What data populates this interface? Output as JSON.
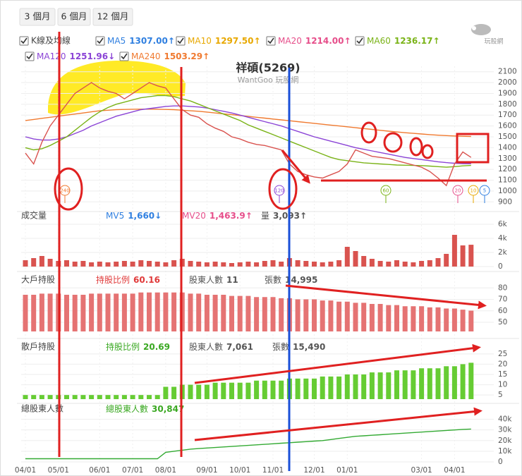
{
  "tabs": [
    "3 個月",
    "6 個月",
    "12 個月"
  ],
  "logo": "玩股網",
  "chart_data": [
    {
      "type": "line",
      "label": "K線及均線",
      "title": "祥碩(5269)",
      "subtitle": "WantGoo 玩股網",
      "legend": [
        {
          "name": "MA5",
          "value": "1307.00↑",
          "color": "#2f7fe0"
        },
        {
          "name": "MA10",
          "value": "1297.50↑",
          "color": "#e8a800"
        },
        {
          "name": "MA20",
          "value": "1214.00↑",
          "color": "#e64e8a"
        },
        {
          "name": "MA60",
          "value": "1236.17↑",
          "color": "#7ab317"
        },
        {
          "name": "MA120",
          "value": "1251.96↓",
          "color": "#8b44d6"
        },
        {
          "name": "MA240",
          "value": "1503.29↑",
          "color": "#f07a30"
        }
      ],
      "series": [
        {
          "color": "#f07a30",
          "values": [
            1650,
            1660,
            1670,
            1680,
            1690,
            1700,
            1710,
            1720,
            1730,
            1740,
            1745,
            1750,
            1752,
            1754,
            1755,
            1755,
            1754,
            1752,
            1750,
            1745,
            1740,
            1735,
            1728,
            1720,
            1712,
            1704,
            1696,
            1688,
            1680,
            1672,
            1664,
            1656,
            1648,
            1640,
            1632,
            1624,
            1616,
            1608,
            1600,
            1592,
            1584,
            1576,
            1568,
            1560,
            1552,
            1545,
            1538,
            1532,
            1526,
            1520,
            1515,
            1511,
            1508,
            1505,
            1503
          ]
        },
        {
          "color": "#8b44d6",
          "values": [
            1500,
            1480,
            1470,
            1470,
            1480,
            1500,
            1530,
            1560,
            1600,
            1630,
            1660,
            1690,
            1710,
            1730,
            1750,
            1760,
            1770,
            1780,
            1785,
            1785,
            1780,
            1775,
            1765,
            1750,
            1735,
            1720,
            1700,
            1680,
            1660,
            1640,
            1620,
            1600,
            1575,
            1550,
            1525,
            1500,
            1480,
            1460,
            1440,
            1420,
            1400,
            1385,
            1370,
            1355,
            1340,
            1325,
            1310,
            1300,
            1290,
            1280,
            1270,
            1262,
            1256,
            1253,
            1252
          ]
        },
        {
          "color": "#7ab317",
          "values": [
            1400,
            1380,
            1390,
            1420,
            1460,
            1500,
            1560,
            1620,
            1680,
            1730,
            1770,
            1800,
            1820,
            1840,
            1860,
            1870,
            1880,
            1880,
            1870,
            1850,
            1830,
            1800,
            1770,
            1740,
            1710,
            1680,
            1650,
            1610,
            1580,
            1550,
            1520,
            1490,
            1460,
            1430,
            1400,
            1370,
            1340,
            1310,
            1290,
            1280,
            1270,
            1260,
            1255,
            1250,
            1245,
            1240,
            1238,
            1236,
            1235,
            1230,
            1225,
            1220,
            1225,
            1232,
            1236
          ]
        },
        {
          "color": "#d9534f",
          "values": [
            1350,
            1250,
            1450,
            1600,
            1700,
            1800,
            1900,
            1950,
            2000,
            1950,
            1920,
            1900,
            1850,
            1900,
            1950,
            2000,
            1970,
            1950,
            1850,
            1750,
            1700,
            1680,
            1620,
            1580,
            1550,
            1500,
            1480,
            1450,
            1430,
            1420,
            1400,
            1380,
            1250,
            1180,
            1150,
            1130,
            1120,
            1150,
            1180,
            1250,
            1380,
            1350,
            1320,
            1310,
            1300,
            1280,
            1260,
            1240,
            1220,
            1180,
            1120,
            1050,
            1250,
            1360,
            1310
          ]
        }
      ],
      "ma_markers": [
        {
          "label": "240",
          "color": "#f07a30"
        },
        {
          "label": "120",
          "color": "#8b44d6"
        },
        {
          "label": "60",
          "color": "#7ab317"
        },
        {
          "label": "20",
          "color": "#e64e8a"
        },
        {
          "label": "10",
          "color": "#e8a800"
        },
        {
          "label": "5",
          "color": "#2f7fe0"
        }
      ],
      "ylim": [
        850,
        2150
      ],
      "yticks": [
        900,
        1000,
        1100,
        1200,
        1300,
        1400,
        1500,
        1600,
        1700,
        1800,
        1900,
        2000,
        2100
      ],
      "grid": true
    },
    {
      "type": "bar",
      "label": "成交量",
      "stats": [
        {
          "name": "MV5",
          "value": "1,660↓",
          "color": "#2f7fe0"
        },
        {
          "name": "MV20",
          "value": "1,463.9↑",
          "color": "#e64e8a"
        },
        {
          "name": "量",
          "value": "3,093↑",
          "color": "#555555"
        }
      ],
      "color": "#d9534f",
      "values": [
        900,
        1200,
        1500,
        1100,
        800,
        900,
        700,
        800,
        600,
        700,
        600,
        700,
        800,
        700,
        900,
        800,
        700,
        600,
        900,
        1100,
        800,
        700,
        600,
        700,
        600,
        500,
        600,
        700,
        600,
        800,
        900,
        700,
        1200,
        900,
        800,
        700,
        600,
        700,
        900,
        2800,
        2200,
        1500,
        1100,
        800,
        700,
        900,
        700,
        600,
        800,
        900,
        1200,
        1800,
        4500,
        3000,
        3093
      ],
      "ylim": [
        0,
        6000
      ],
      "yticks": [
        0,
        {
          "value": 2000,
          "label": "2k"
        },
        {
          "value": 4000,
          "label": "4k"
        },
        {
          "value": 6000,
          "label": "6k"
        }
      ],
      "grid": true
    },
    {
      "type": "bar",
      "label": "大戶持股",
      "stats": [
        {
          "name": "持股比例",
          "value": "60.16",
          "color": "#e03a3a"
        },
        {
          "name": "股東人數",
          "value": "11",
          "color": "#555555"
        },
        {
          "name": "張數",
          "value": "14,995",
          "color": "#555555"
        }
      ],
      "color": "#e57373",
      "values": [
        74,
        74,
        75,
        75,
        75,
        74,
        74,
        74,
        75,
        75,
        75,
        75,
        75,
        75,
        76,
        76,
        76,
        76,
        76,
        76,
        75,
        75,
        74,
        74,
        74,
        73,
        73,
        73,
        72,
        72,
        72,
        71,
        71,
        70,
        70,
        70,
        69,
        69,
        68,
        68,
        67,
        67,
        66,
        66,
        65,
        65,
        64,
        64,
        64,
        63,
        63,
        62,
        62,
        61,
        60.16
      ],
      "ylim": [
        42,
        82
      ],
      "yticks": [
        50,
        60,
        70,
        80
      ],
      "grid": true
    },
    {
      "type": "bar",
      "label": "散戶持股",
      "stats": [
        {
          "name": "持股比例",
          "value": "20.69",
          "color": "#3aa822"
        },
        {
          "name": "股東人數",
          "value": "7,061",
          "color": "#555555"
        },
        {
          "name": "張數",
          "value": "15,490",
          "color": "#555555"
        }
      ],
      "color": "#66cc33",
      "values": [
        5,
        5,
        5,
        5,
        5,
        5,
        5,
        5,
        5,
        5,
        5,
        5,
        5,
        5,
        5,
        5,
        5,
        9,
        9,
        10,
        10,
        10,
        10,
        11,
        11,
        11,
        11,
        11,
        12,
        12,
        12,
        12,
        13,
        13,
        13,
        13,
        14,
        14,
        14,
        15,
        15,
        15,
        16,
        16,
        16,
        17,
        17,
        17,
        18,
        18,
        18,
        19,
        19,
        20,
        20.69
      ],
      "ylim": [
        3,
        27
      ],
      "yticks": [
        5,
        10,
        15,
        20,
        25
      ],
      "grid": true
    },
    {
      "type": "line",
      "label": "總股東人數",
      "stats": [
        {
          "name": "總股東人數",
          "value": "30,847",
          "color": "#3aa822"
        }
      ],
      "color": "#33aa33",
      "categories": [
        "04/01",
        null,
        null,
        null,
        "05/01",
        null,
        null,
        null,
        null,
        "06/01",
        null,
        null,
        null,
        "07/01",
        null,
        null,
        null,
        "08/01",
        null,
        null,
        null,
        null,
        "09/01",
        null,
        null,
        null,
        "10/01",
        null,
        null,
        null,
        "11/01",
        null,
        null,
        null,
        null,
        "12/01",
        null,
        null,
        null,
        "01/01",
        null,
        null,
        null,
        null,
        null,
        null,
        null,
        null,
        "03/01",
        null,
        null,
        null,
        "04/01",
        null,
        null
      ],
      "values": [
        3000,
        3000,
        3000,
        3000,
        3000,
        3000,
        3000,
        3000,
        3000,
        3000,
        3000,
        3000,
        3000,
        3000,
        3000,
        3000,
        3000,
        9000,
        10000,
        11000,
        12000,
        12500,
        13000,
        13500,
        14000,
        14500,
        15000,
        15500,
        16000,
        16500,
        17000,
        17500,
        18000,
        18500,
        19000,
        19500,
        20000,
        21000,
        22000,
        23000,
        24000,
        24500,
        25000,
        25500,
        26000,
        26500,
        27000,
        27500,
        28000,
        28500,
        29000,
        29500,
        30000,
        30500,
        30847
      ],
      "ylim": [
        0,
        43000
      ],
      "yticks": [
        0,
        {
          "value": 10000,
          "label": "10k"
        },
        {
          "value": 20000,
          "label": "20k"
        },
        {
          "value": 30000,
          "label": "30k"
        },
        {
          "value": 40000,
          "label": "40k"
        }
      ],
      "grid": true
    }
  ]
}
